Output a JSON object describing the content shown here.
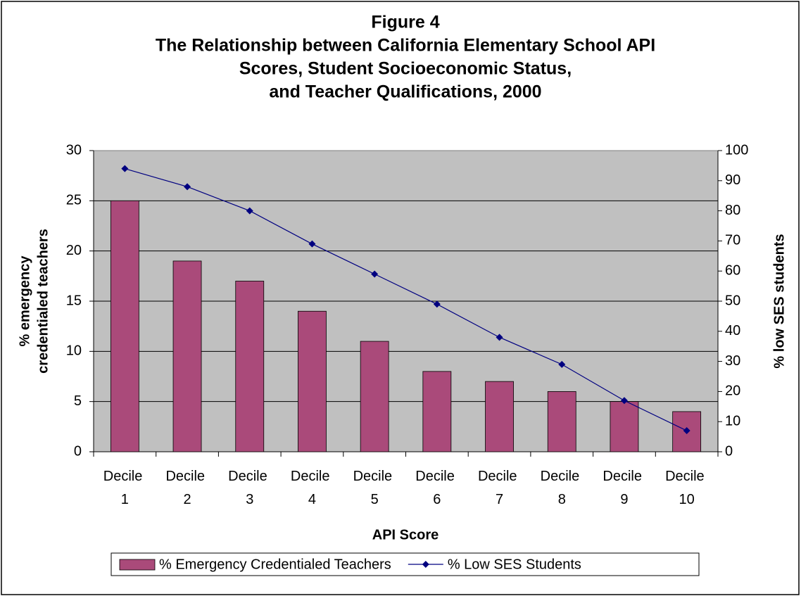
{
  "chart_data": {
    "type": "bar",
    "title": [
      "Figure 4",
      "The Relationship between California Elementary School API",
      "Scores, Student Socioeconomic Status,",
      "and Teacher Qualifications, 2000"
    ],
    "xlabel": "API Score",
    "ylabel": [
      "% emergency",
      "credentialed teachers"
    ],
    "y2label": "% low SES students",
    "categories": [
      "Decile 1",
      "Decile 2",
      "Decile 3",
      "Decile 4",
      "Decile 5",
      "Decile 6",
      "Decile 7",
      "Decile 8",
      "Decile 9",
      "Decile 10"
    ],
    "series": [
      {
        "name": "% Emergency Credentialed Teachers",
        "type": "bar",
        "color": "#aa4a7a",
        "values": [
          25,
          19,
          17,
          14,
          11,
          8,
          7,
          6,
          5,
          4
        ]
      },
      {
        "name": "% Low SES Students",
        "type": "line",
        "axis": "y2",
        "color": "#000080",
        "values": [
          94,
          88,
          80,
          69,
          59,
          49,
          38,
          29,
          17,
          7
        ]
      }
    ],
    "ylim": [
      0,
      30
    ],
    "yticks": [
      0,
      5,
      10,
      15,
      20,
      25,
      30
    ],
    "y2lim": [
      0,
      100
    ],
    "y2ticks": [
      0,
      10,
      20,
      30,
      40,
      50,
      60,
      70,
      80,
      90,
      100
    ],
    "grid": true,
    "plot_background": "#c0c0c0",
    "legend": "bottom"
  }
}
